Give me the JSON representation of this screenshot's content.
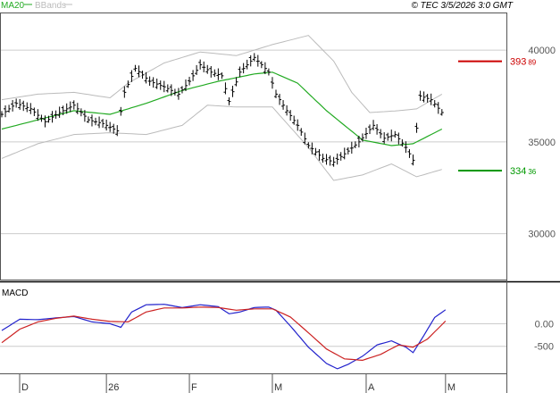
{
  "header": {
    "legend": [
      {
        "label": "MA20",
        "color": "#22aa22"
      },
      {
        "label": "BBands",
        "color": "#bbbbbb"
      }
    ],
    "copyright": "© TEC 3/5/2026 3:0 GMT"
  },
  "chart_data": [
    {
      "type": "candlestick",
      "title": "",
      "ylim": [
        27500,
        42000
      ],
      "y_ticks": [
        {
          "value": 40000,
          "label": "40000"
        },
        {
          "value": 35000,
          "label": "35000"
        },
        {
          "value": 30000,
          "label": "30000"
        }
      ],
      "x_ticks": [
        {
          "index": 0,
          "label": "D"
        },
        {
          "index": 29,
          "label": "26"
        },
        {
          "index": 52,
          "label": "F"
        },
        {
          "index": 75,
          "label": "M"
        },
        {
          "index": 101,
          "label": "A"
        },
        {
          "index": 123,
          "label": "M"
        }
      ],
      "bar_count": 128,
      "price_lines": [
        {
          "name": "resistance",
          "value": 39389,
          "label": "393",
          "label_suffix": "89",
          "color": "#cc0000"
        },
        {
          "name": "support",
          "value": 33436,
          "label": "334",
          "label_suffix": "36",
          "color": "#009900"
        }
      ],
      "price_anchors": [
        {
          "i": 0,
          "v": 36500
        },
        {
          "i": 4,
          "v": 37100
        },
        {
          "i": 8,
          "v": 36800
        },
        {
          "i": 12,
          "v": 36100
        },
        {
          "i": 16,
          "v": 36600
        },
        {
          "i": 20,
          "v": 37000
        },
        {
          "i": 24,
          "v": 36200
        },
        {
          "i": 28,
          "v": 36000
        },
        {
          "i": 32,
          "v": 35600
        },
        {
          "i": 34,
          "v": 37700
        },
        {
          "i": 37,
          "v": 39000
        },
        {
          "i": 41,
          "v": 38300
        },
        {
          "i": 45,
          "v": 38000
        },
        {
          "i": 49,
          "v": 37600
        },
        {
          "i": 52,
          "v": 38300
        },
        {
          "i": 55,
          "v": 39200
        },
        {
          "i": 58,
          "v": 38800
        },
        {
          "i": 61,
          "v": 38600
        },
        {
          "i": 63,
          "v": 37200
        },
        {
          "i": 66,
          "v": 38800
        },
        {
          "i": 70,
          "v": 39600
        },
        {
          "i": 74,
          "v": 38800
        },
        {
          "i": 76,
          "v": 37600
        },
        {
          "i": 79,
          "v": 36700
        },
        {
          "i": 82,
          "v": 35900
        },
        {
          "i": 85,
          "v": 34800
        },
        {
          "i": 89,
          "v": 34100
        },
        {
          "i": 92,
          "v": 33900
        },
        {
          "i": 96,
          "v": 34500
        },
        {
          "i": 99,
          "v": 35000
        },
        {
          "i": 103,
          "v": 35900
        },
        {
          "i": 106,
          "v": 35200
        },
        {
          "i": 109,
          "v": 35400
        },
        {
          "i": 112,
          "v": 34700
        },
        {
          "i": 114,
          "v": 34000
        },
        {
          "i": 116,
          "v": 37500
        },
        {
          "i": 119,
          "v": 37300
        },
        {
          "i": 122,
          "v": 36600
        }
      ],
      "ma20_anchors": [
        {
          "i": 0,
          "v": 35700
        },
        {
          "i": 10,
          "v": 36200
        },
        {
          "i": 20,
          "v": 36700
        },
        {
          "i": 30,
          "v": 36500
        },
        {
          "i": 40,
          "v": 37100
        },
        {
          "i": 50,
          "v": 37800
        },
        {
          "i": 60,
          "v": 38300
        },
        {
          "i": 70,
          "v": 38700
        },
        {
          "i": 75,
          "v": 38800
        },
        {
          "i": 82,
          "v": 38200
        },
        {
          "i": 90,
          "v": 36700
        },
        {
          "i": 100,
          "v": 35100
        },
        {
          "i": 108,
          "v": 34800
        },
        {
          "i": 114,
          "v": 34900
        },
        {
          "i": 122,
          "v": 35700
        }
      ],
      "bb_upper_anchors": [
        {
          "i": 0,
          "v": 37300
        },
        {
          "i": 10,
          "v": 37600
        },
        {
          "i": 20,
          "v": 37700
        },
        {
          "i": 30,
          "v": 37400
        },
        {
          "i": 35,
          "v": 38200
        },
        {
          "i": 45,
          "v": 39300
        },
        {
          "i": 55,
          "v": 39900
        },
        {
          "i": 65,
          "v": 39700
        },
        {
          "i": 75,
          "v": 40300
        },
        {
          "i": 85,
          "v": 40800
        },
        {
          "i": 92,
          "v": 39400
        },
        {
          "i": 97,
          "v": 37700
        },
        {
          "i": 102,
          "v": 36600
        },
        {
          "i": 110,
          "v": 36700
        },
        {
          "i": 115,
          "v": 36800
        },
        {
          "i": 122,
          "v": 37600
        }
      ],
      "bb_lower_anchors": [
        {
          "i": 0,
          "v": 34100
        },
        {
          "i": 10,
          "v": 34900
        },
        {
          "i": 20,
          "v": 35400
        },
        {
          "i": 30,
          "v": 35500
        },
        {
          "i": 40,
          "v": 35400
        },
        {
          "i": 50,
          "v": 35900
        },
        {
          "i": 57,
          "v": 37000
        },
        {
          "i": 65,
          "v": 36900
        },
        {
          "i": 75,
          "v": 36900
        },
        {
          "i": 85,
          "v": 34700
        },
        {
          "i": 92,
          "v": 32900
        },
        {
          "i": 100,
          "v": 33200
        },
        {
          "i": 108,
          "v": 33800
        },
        {
          "i": 115,
          "v": 33100
        },
        {
          "i": 122,
          "v": 33500
        }
      ]
    },
    {
      "type": "line",
      "title": "MACD",
      "ylim": [
        -1100,
        900
      ],
      "y_ticks": [
        {
          "value": 0,
          "label": "0.00"
        },
        {
          "value": -500,
          "label": "-500"
        }
      ],
      "series": [
        {
          "key": "macd",
          "color": "#2222cc",
          "anchors": [
            {
              "i": 0,
              "v": -150
            },
            {
              "i": 5,
              "v": 100
            },
            {
              "i": 10,
              "v": 90
            },
            {
              "i": 15,
              "v": 130
            },
            {
              "i": 20,
              "v": 160
            },
            {
              "i": 25,
              "v": 40
            },
            {
              "i": 30,
              "v": 0
            },
            {
              "i": 33,
              "v": -80
            },
            {
              "i": 36,
              "v": 260
            },
            {
              "i": 40,
              "v": 420
            },
            {
              "i": 45,
              "v": 430
            },
            {
              "i": 50,
              "v": 360
            },
            {
              "i": 55,
              "v": 420
            },
            {
              "i": 60,
              "v": 380
            },
            {
              "i": 63,
              "v": 220
            },
            {
              "i": 66,
              "v": 260
            },
            {
              "i": 70,
              "v": 360
            },
            {
              "i": 74,
              "v": 370
            },
            {
              "i": 76,
              "v": 300
            },
            {
              "i": 80,
              "v": -50
            },
            {
              "i": 85,
              "v": -520
            },
            {
              "i": 90,
              "v": -880
            },
            {
              "i": 93,
              "v": -1000
            },
            {
              "i": 96,
              "v": -900
            },
            {
              "i": 100,
              "v": -720
            },
            {
              "i": 104,
              "v": -470
            },
            {
              "i": 108,
              "v": -380
            },
            {
              "i": 112,
              "v": -520
            },
            {
              "i": 114,
              "v": -640
            },
            {
              "i": 117,
              "v": -260
            },
            {
              "i": 120,
              "v": 140
            },
            {
              "i": 123,
              "v": 310
            }
          ]
        },
        {
          "key": "signal",
          "color": "#cc2222",
          "anchors": [
            {
              "i": 0,
              "v": -420
            },
            {
              "i": 5,
              "v": -120
            },
            {
              "i": 10,
              "v": 40
            },
            {
              "i": 15,
              "v": 120
            },
            {
              "i": 20,
              "v": 170
            },
            {
              "i": 25,
              "v": 100
            },
            {
              "i": 30,
              "v": 50
            },
            {
              "i": 35,
              "v": 40
            },
            {
              "i": 40,
              "v": 260
            },
            {
              "i": 45,
              "v": 350
            },
            {
              "i": 50,
              "v": 350
            },
            {
              "i": 55,
              "v": 370
            },
            {
              "i": 60,
              "v": 360
            },
            {
              "i": 65,
              "v": 300
            },
            {
              "i": 70,
              "v": 330
            },
            {
              "i": 75,
              "v": 330
            },
            {
              "i": 80,
              "v": 150
            },
            {
              "i": 85,
              "v": -200
            },
            {
              "i": 90,
              "v": -560
            },
            {
              "i": 95,
              "v": -780
            },
            {
              "i": 100,
              "v": -810
            },
            {
              "i": 105,
              "v": -680
            },
            {
              "i": 110,
              "v": -470
            },
            {
              "i": 114,
              "v": -520
            },
            {
              "i": 118,
              "v": -340
            },
            {
              "i": 123,
              "v": 60
            }
          ]
        }
      ]
    }
  ]
}
